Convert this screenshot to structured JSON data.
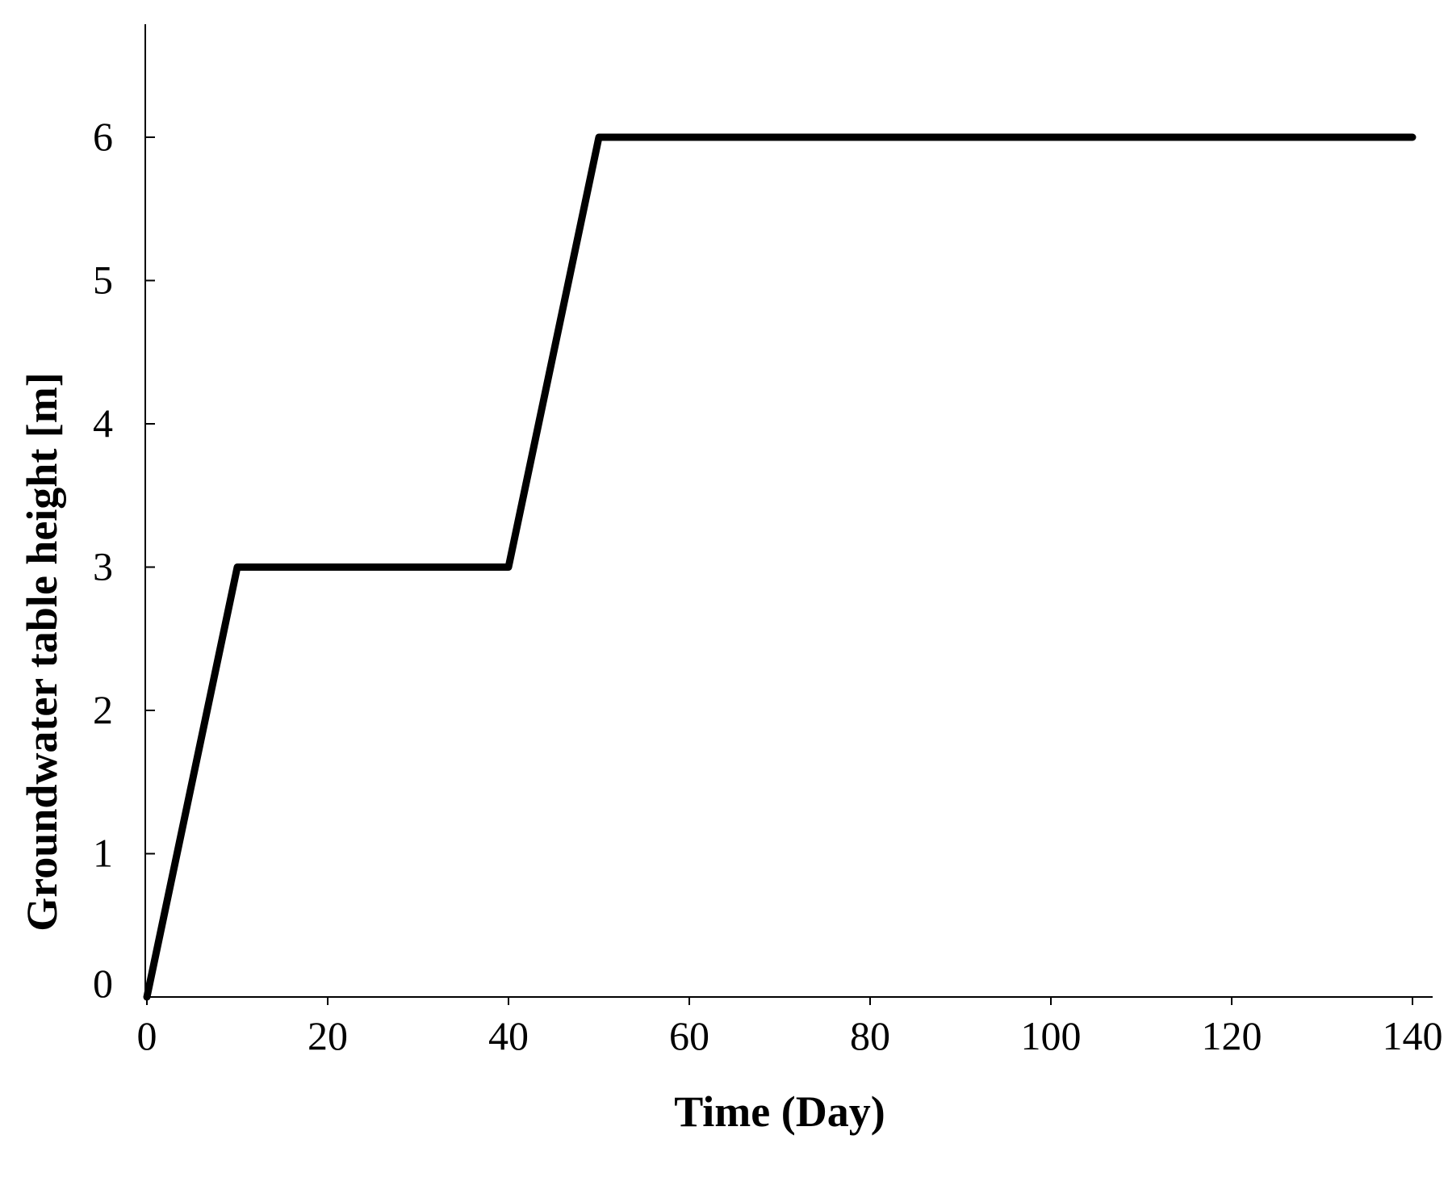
{
  "chart_data": {
    "type": "line",
    "title": "",
    "xlabel": "Time (Day)",
    "ylabel": "Groundwater table height [m]",
    "xlim": [
      0,
      140
    ],
    "ylim": [
      0,
      6
    ],
    "x_ticks": [
      0,
      20,
      40,
      60,
      80,
      100,
      120,
      140
    ],
    "y_ticks": [
      0,
      1,
      2,
      3,
      4,
      5,
      6
    ],
    "grid": false,
    "legend": "none",
    "series": [
      {
        "color": "#000000",
        "x": [
          0,
          10,
          40,
          50,
          140
        ],
        "y": [
          0,
          3,
          3,
          6,
          6
        ]
      }
    ]
  }
}
